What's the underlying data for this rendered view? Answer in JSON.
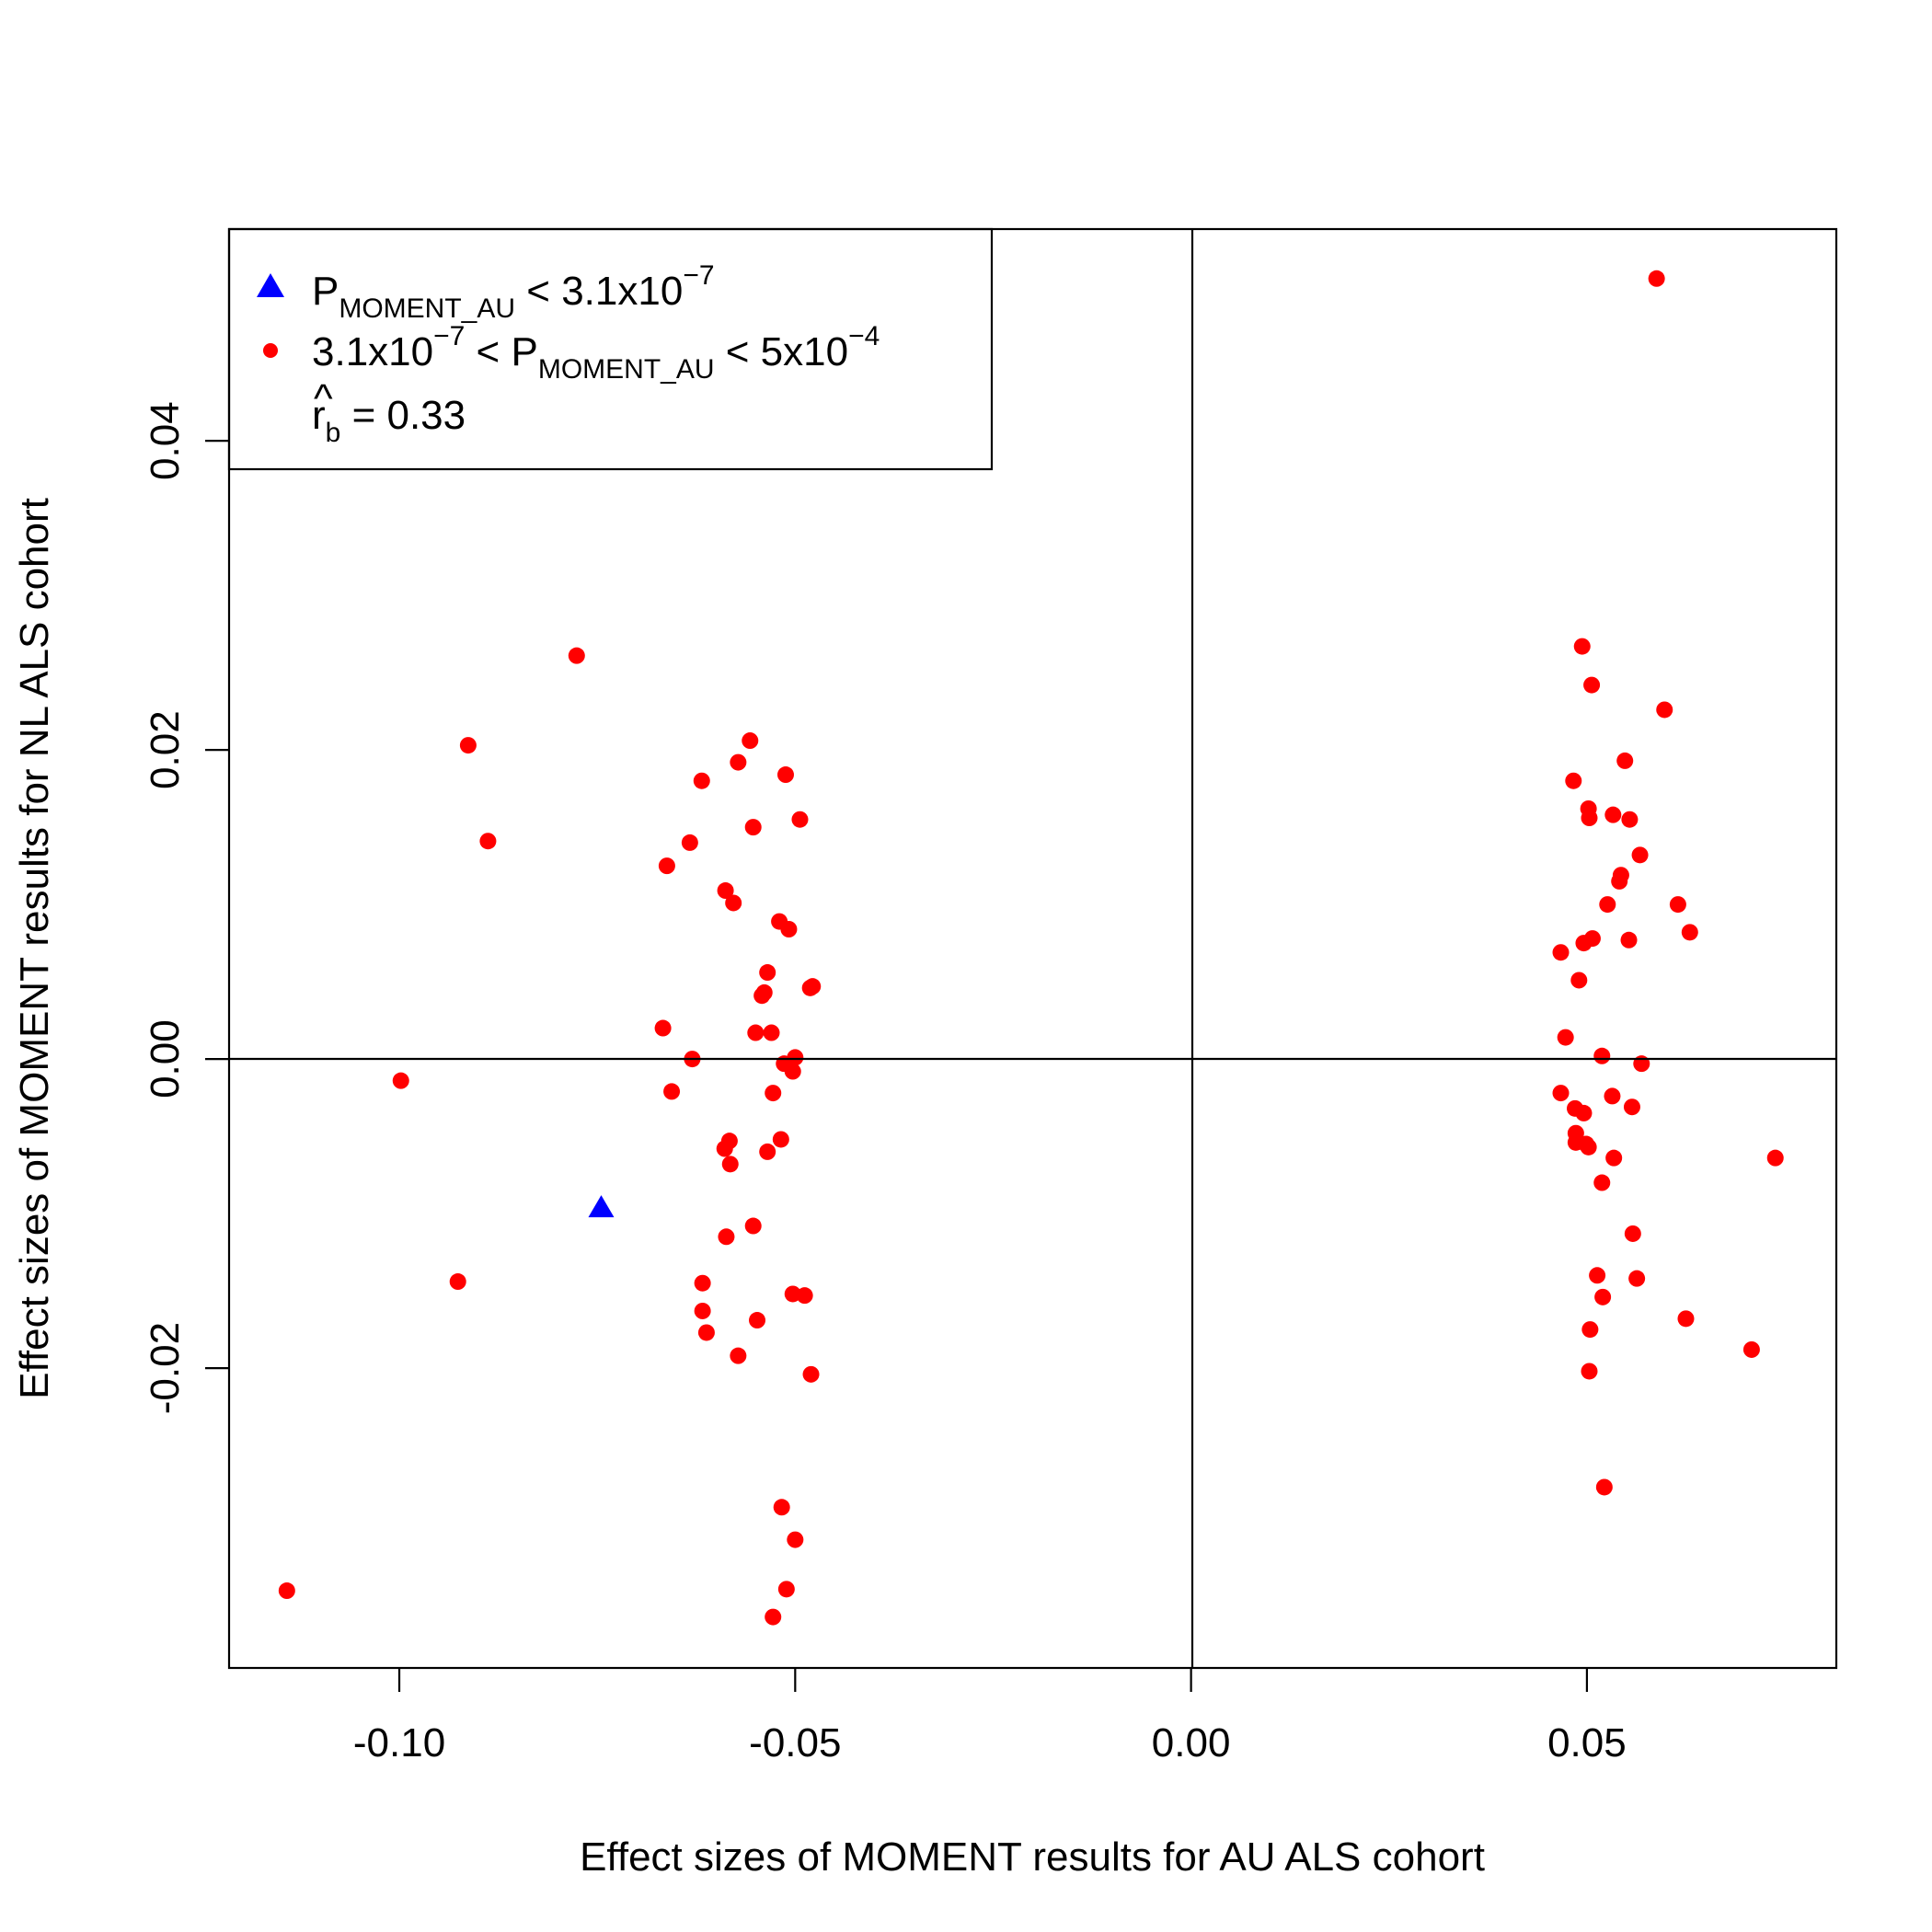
{
  "chart_data": {
    "type": "scatter",
    "title": "",
    "xlabel": "Effect sizes of  MOMENT results for AU ALS cohort",
    "ylabel": "Effect sizes of MOMENT results for NL ALS cohort",
    "xlim": [
      -0.1215,
      0.0815
    ],
    "ylim": [
      -0.0394,
      0.0537
    ],
    "x_ticks": [
      -0.1,
      -0.05,
      0.0,
      0.05
    ],
    "x_tick_labels": [
      "-0.10",
      "-0.05",
      "0.00",
      "0.05"
    ],
    "y_ticks": [
      -0.02,
      0.0,
      0.02,
      0.04
    ],
    "y_tick_labels": [
      "-0.02",
      "0.00",
      "0.02",
      "0.04"
    ],
    "reference_lines": {
      "vertical_x": 0,
      "horizontal_y": 0
    },
    "legend": {
      "position": "top-left",
      "items": [
        {
          "marker": "triangle",
          "color": "#0000ff",
          "main": "P",
          "sub": "MOMENT_AU",
          "rest": " < 3.1x10",
          "sup": "−7"
        },
        {
          "marker": "circle",
          "color": "#ff0000",
          "pre": "3.1x10",
          "pre_sup": "−7",
          "mid": " < P",
          "sub": "MOMENT_AU",
          "rest": " < 5x10",
          "sup": "−4"
        },
        {
          "marker": "none",
          "main": "r",
          "hat": "^",
          "sub": "b",
          "rest": " = 0.33"
        }
      ]
    },
    "series": [
      {
        "marker": "triangle",
        "color": "#0000ff",
        "points": [
          [
            -0.0745,
            -0.0097
          ]
        ]
      },
      {
        "marker": "circle",
        "color": "#ff0000",
        "points": [
          [
            -0.1142,
            -0.0344
          ],
          [
            -0.0998,
            -0.0014
          ],
          [
            -0.0913,
            0.0203
          ],
          [
            -0.0926,
            -0.0144
          ],
          [
            -0.0888,
            0.0141
          ],
          [
            -0.0776,
            0.0261
          ],
          [
            -0.0667,
            0.002
          ],
          [
            -0.0662,
            0.0125
          ],
          [
            -0.0656,
            -0.0021
          ],
          [
            -0.0633,
            0.014
          ],
          [
            -0.063,
            0.0
          ],
          [
            -0.0618,
            0.018
          ],
          [
            -0.0617,
            -0.0145
          ],
          [
            -0.0617,
            -0.0163
          ],
          [
            -0.0612,
            -0.0177
          ],
          [
            -0.0588,
            0.0109
          ],
          [
            -0.0589,
            -0.0058
          ],
          [
            -0.0583,
            -0.0053
          ],
          [
            -0.0582,
            -0.0068
          ],
          [
            -0.0587,
            -0.0115
          ],
          [
            -0.0578,
            0.0101
          ],
          [
            -0.0572,
            0.0192
          ],
          [
            -0.0572,
            -0.0192
          ],
          [
            -0.0557,
            0.0206
          ],
          [
            -0.0553,
            0.015
          ],
          [
            -0.0553,
            -0.0108
          ],
          [
            -0.055,
            0.0017
          ],
          [
            -0.0548,
            -0.0169
          ],
          [
            -0.0542,
            0.0041
          ],
          [
            -0.0539,
            0.0043
          ],
          [
            -0.0535,
            0.0056
          ],
          [
            -0.0535,
            -0.006
          ],
          [
            -0.053,
            0.0017
          ],
          [
            -0.0528,
            -0.0022
          ],
          [
            -0.0528,
            -0.0361
          ],
          [
            -0.052,
            0.0089
          ],
          [
            -0.0518,
            -0.0052
          ],
          [
            -0.0517,
            -0.029
          ],
          [
            -0.0514,
            -0.0003
          ],
          [
            -0.0512,
            0.0184
          ],
          [
            -0.0511,
            -0.0343
          ],
          [
            -0.0508,
            0.0084
          ],
          [
            -0.0503,
            -0.0008
          ],
          [
            -0.0503,
            -0.0152
          ],
          [
            -0.05,
            0.0001
          ],
          [
            -0.05,
            -0.0311
          ],
          [
            -0.0494,
            0.0155
          ],
          [
            -0.0488,
            -0.0153
          ],
          [
            -0.0481,
            0.0046
          ],
          [
            -0.0478,
            0.0047
          ],
          [
            -0.048,
            -0.0204
          ],
          [
            0.0467,
            0.0069
          ],
          [
            0.0467,
            -0.0022
          ],
          [
            0.0473,
            0.0014
          ],
          [
            0.0483,
            0.018
          ],
          [
            0.0485,
            -0.0032
          ],
          [
            0.0486,
            -0.0048
          ],
          [
            0.0486,
            -0.0054
          ],
          [
            0.049,
            0.0051
          ],
          [
            0.0494,
            0.0267
          ],
          [
            0.0496,
            0.0075
          ],
          [
            0.0496,
            -0.0035
          ],
          [
            0.0499,
            -0.0055
          ],
          [
            0.0502,
            -0.0057
          ],
          [
            0.0502,
            0.0162
          ],
          [
            0.0503,
            0.0156
          ],
          [
            0.0503,
            -0.0202
          ],
          [
            0.0504,
            -0.0175
          ],
          [
            0.0506,
            0.0242
          ],
          [
            0.0507,
            0.0078
          ],
          [
            0.0513,
            -0.014
          ],
          [
            0.0519,
            0.0002
          ],
          [
            0.0519,
            -0.008
          ],
          [
            0.052,
            -0.0154
          ],
          [
            0.0522,
            -0.0277
          ],
          [
            0.0526,
            0.01
          ],
          [
            0.0532,
            -0.0024
          ],
          [
            0.0533,
            0.0158
          ],
          [
            0.0534,
            -0.0064
          ],
          [
            0.0541,
            0.0115
          ],
          [
            0.0543,
            0.0119
          ],
          [
            0.0548,
            0.0193
          ],
          [
            0.0553,
            0.0077
          ],
          [
            0.0554,
            0.0155
          ],
          [
            0.0557,
            -0.0031
          ],
          [
            0.0558,
            -0.0113
          ],
          [
            0.0563,
            -0.0142
          ],
          [
            0.0567,
            0.0132
          ],
          [
            0.0569,
            -0.0003
          ],
          [
            0.0588,
            0.0505
          ],
          [
            0.0598,
            0.0226
          ],
          [
            0.0615,
            0.01
          ],
          [
            0.0625,
            -0.0168
          ],
          [
            0.063,
            0.0082
          ],
          [
            0.0708,
            -0.0188
          ],
          [
            0.0738,
            -0.0064
          ]
        ]
      }
    ]
  }
}
